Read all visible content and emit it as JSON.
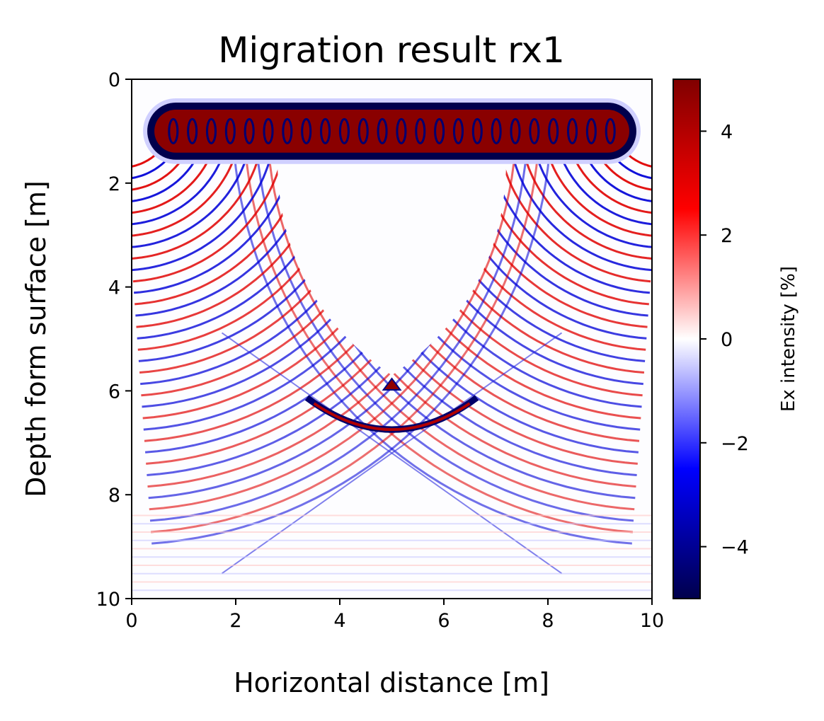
{
  "chart_data": {
    "type": "heatmap",
    "title": "Migration result rx1",
    "xlabel": "Horizontal distance [m]",
    "ylabel": "Depth form surface [m]",
    "xlim": [
      0,
      10
    ],
    "ylim": [
      10,
      0
    ],
    "xticks": [
      "0",
      "2",
      "4",
      "6",
      "8",
      "10"
    ],
    "yticks": [
      "0",
      "2",
      "4",
      "6",
      "8",
      "10"
    ],
    "colormap": "seismic",
    "colorbar": {
      "label": "Ex intensity [%]",
      "range": [
        -5,
        5
      ],
      "ticks": [
        "4",
        "2",
        "0",
        "−2",
        "−4"
      ],
      "tick_values": [
        4,
        2,
        0,
        -2,
        -4
      ]
    },
    "features": [
      {
        "kind": "horizontal-reflector",
        "depth_m": 1.0,
        "x_range": [
          0.3,
          9.7
        ],
        "amplitude": 5
      },
      {
        "kind": "point-scatter",
        "x": 5.0,
        "depth_m": 5.9
      },
      {
        "kind": "hyperbola-apex",
        "x": 5.0,
        "depth_m": 6.95
      },
      {
        "kind": "crossing-point",
        "x": 5.0,
        "depth_m": 7.2
      }
    ],
    "grid": false,
    "legend": "none"
  }
}
